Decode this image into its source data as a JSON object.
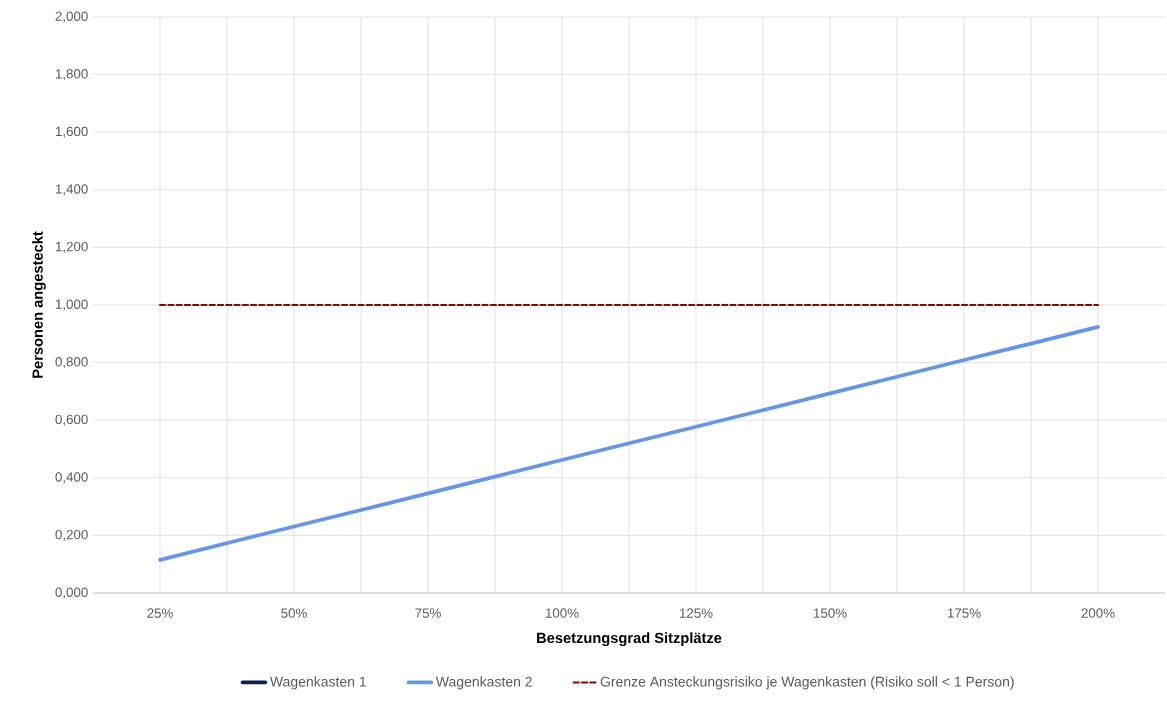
{
  "chart_data": {
    "type": "line",
    "xlabel": "Besetzungsgrad Sitzplätze",
    "ylabel": "Personen angesteckt",
    "categories": [
      "25%",
      null,
      "50%",
      null,
      "75%",
      null,
      "100%",
      null,
      "125%",
      null,
      "150%",
      null,
      "175%",
      null,
      "200%"
    ],
    "series": [
      {
        "name": "Wagenkasten 1",
        "color": "#0e1f4d",
        "values": [
          null,
          null,
          null,
          null,
          null,
          null,
          null,
          null,
          null,
          null,
          null,
          null,
          null,
          null,
          null
        ]
      },
      {
        "name": "Wagenkasten 2",
        "color": "#6495f0",
        "values": [
          0.115,
          0.173,
          0.231,
          0.288,
          0.346,
          0.404,
          0.462,
          0.52,
          0.577,
          0.635,
          0.693,
          0.751,
          0.809,
          0.866,
          0.924
        ]
      },
      {
        "name": "Grenze Ansteckungsrisiko je Wagenkasten (Risiko soll < 1 Person)",
        "color": "#8b0000",
        "line_style": "dashed",
        "values": [
          1,
          1,
          1,
          1,
          1,
          1,
          1,
          1,
          1,
          1,
          1,
          1,
          1,
          1,
          1
        ]
      }
    ],
    "ylim": [
      0,
      2
    ],
    "yticks": [
      {
        "value": 0,
        "label": "0,000"
      },
      {
        "value": 0.2,
        "label": "0,200"
      },
      {
        "value": 0.4,
        "label": "0,400"
      },
      {
        "value": 0.6,
        "label": "0,600"
      },
      {
        "value": 0.8,
        "label": "0,800"
      },
      {
        "value": 1,
        "label": "1,000"
      },
      {
        "value": 1.2,
        "label": "1,200"
      },
      {
        "value": 1.4,
        "label": "1,400"
      },
      {
        "value": 1.6,
        "label": "1,600"
      },
      {
        "value": 1.8,
        "label": "1,800"
      },
      {
        "value": 2,
        "label": "2,000"
      }
    ],
    "grid": true,
    "legend": "bottom",
    "line_style": "solid"
  }
}
